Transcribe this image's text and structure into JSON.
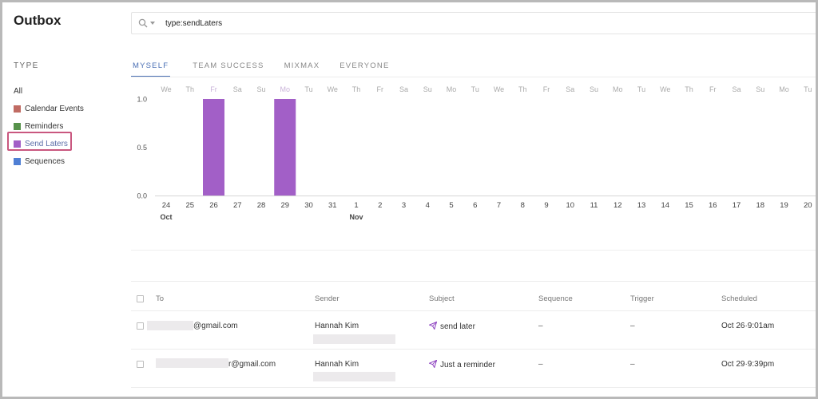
{
  "app": {
    "title": "Outbox"
  },
  "sidebar": {
    "heading": "TYPE",
    "items": [
      {
        "label": "All",
        "color": ""
      },
      {
        "label": "Calendar Events",
        "color": "#c06b63"
      },
      {
        "label": "Reminders",
        "color": "#57924b"
      },
      {
        "label": "Send Laters",
        "color": "#a25fc7"
      },
      {
        "label": "Sequences",
        "color": "#4f7fd4"
      }
    ],
    "selected": "Send Laters",
    "highlight_color": "#c9577f"
  },
  "search": {
    "value": "type:sendLaters"
  },
  "tabs": [
    {
      "label": "MYSELF",
      "active": true
    },
    {
      "label": "TEAM SUCCESS",
      "active": false
    },
    {
      "label": "MIXMAX",
      "active": false
    },
    {
      "label": "EVERYONE",
      "active": false
    }
  ],
  "chart_data": {
    "type": "bar",
    "weekdays": [
      "We",
      "Th",
      "Fr",
      "Sa",
      "Su",
      "Mo",
      "Tu",
      "We",
      "Th",
      "Fr",
      "Sa",
      "Su",
      "Mo",
      "Tu",
      "We",
      "Th",
      "Fr",
      "Sa",
      "Su",
      "Mo",
      "Tu",
      "We",
      "Th",
      "Fr",
      "Sa",
      "Su",
      "Mo",
      "Tu"
    ],
    "categories": [
      "24",
      "25",
      "26",
      "27",
      "28",
      "29",
      "30",
      "31",
      "1",
      "2",
      "3",
      "4",
      "5",
      "6",
      "7",
      "8",
      "9",
      "10",
      "11",
      "12",
      "13",
      "14",
      "15",
      "16",
      "17",
      "18",
      "19",
      "20"
    ],
    "month_labels": [
      {
        "at": 0,
        "label": "Oct"
      },
      {
        "at": 8,
        "label": "Nov"
      }
    ],
    "values": [
      0,
      0,
      1,
      0,
      0,
      1,
      0,
      0,
      0,
      0,
      0,
      0,
      0,
      0,
      0,
      0,
      0,
      0,
      0,
      0,
      0,
      0,
      0,
      0,
      0,
      0,
      0,
      0
    ],
    "highlight_weekdays": [
      2,
      5
    ],
    "yticks": [
      "1.0",
      "0.5",
      "0.0"
    ],
    "ylim": [
      0,
      1
    ],
    "bar_color": "#a25fc7"
  },
  "table": {
    "columns": [
      "To",
      "Sender",
      "Subject",
      "Sequence",
      "Trigger",
      "Scheduled"
    ],
    "rows": [
      {
        "to": "@gmail.com",
        "sender": "Hannah Kim",
        "subject": "send later",
        "sequence": "–",
        "trigger": "–",
        "scheduled": "Oct 26·9:01am"
      },
      {
        "to": "r@gmail.com",
        "sender": "Hannah Kim",
        "subject": "Just a reminder",
        "sequence": "–",
        "trigger": "–",
        "scheduled": "Oct 29·9:39pm"
      }
    ]
  }
}
